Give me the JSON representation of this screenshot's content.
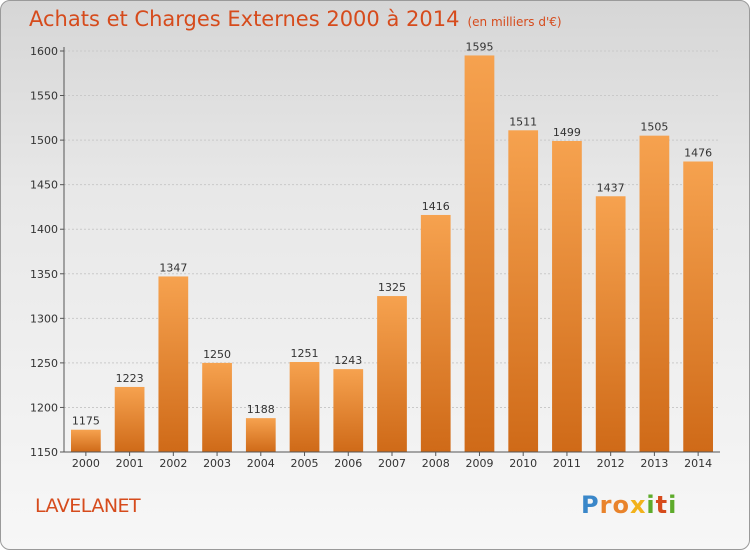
{
  "header": {
    "title": "Achats et Charges Externes 2000 à 2014",
    "subtitle": "(en milliers d'€)"
  },
  "footer": {
    "place": "LAVELANET",
    "logo": "Proxiti"
  },
  "colors": {
    "title": "#d64b1c",
    "bar_top": "#f6a24f",
    "bar_bottom": "#cf6a18"
  },
  "chart_data": {
    "type": "bar",
    "categories": [
      "2000",
      "2001",
      "2002",
      "2003",
      "2004",
      "2005",
      "2006",
      "2007",
      "2008",
      "2009",
      "2010",
      "2011",
      "2012",
      "2013",
      "2014"
    ],
    "values": [
      1175,
      1223,
      1347,
      1250,
      1188,
      1251,
      1243,
      1325,
      1416,
      1595,
      1511,
      1499,
      1437,
      1505,
      1476
    ],
    "ylim": [
      1150,
      1600
    ],
    "yticks": [
      1150,
      1200,
      1250,
      1300,
      1350,
      1400,
      1450,
      1500,
      1550,
      1600
    ],
    "grid": true,
    "value_labels": true
  }
}
